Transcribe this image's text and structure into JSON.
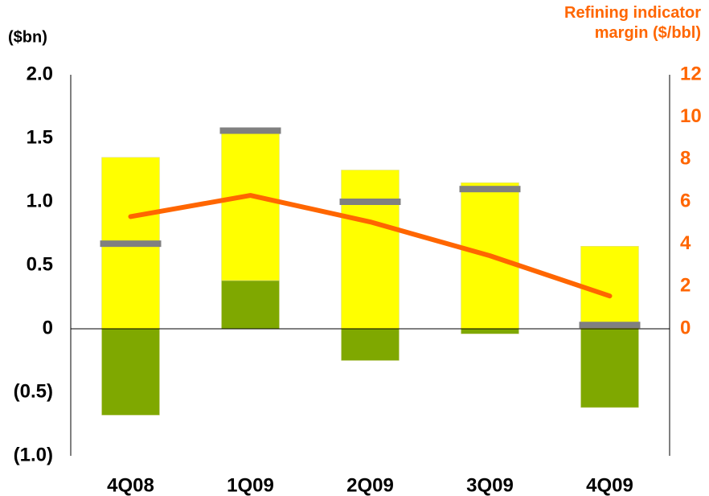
{
  "chart_data": {
    "type": "bar",
    "ylabel": "($bn)",
    "y2label": "Refining indicator margin ($/bbl)",
    "categories": [
      "4Q08",
      "1Q09",
      "2Q09",
      "3Q09",
      "4Q09"
    ],
    "series": [
      {
        "type": "bar",
        "color": "#7fa800",
        "values": [
          -0.68,
          0.38,
          -0.25,
          -0.04,
          -0.62
        ]
      },
      {
        "type": "bar",
        "color": "#ffff00",
        "values": [
          1.35,
          1.18,
          1.25,
          1.15,
          0.65
        ]
      },
      {
        "type": "marker",
        "color": "#808080",
        "values": [
          0.67,
          1.56,
          1.0,
          1.1,
          0.03
        ]
      },
      {
        "type": "line",
        "axis": "y2",
        "color": "#ff6600",
        "values": [
          5.3,
          6.3,
          5.05,
          3.45,
          1.55
        ]
      }
    ],
    "ylim": [
      -1.0,
      2.0
    ],
    "yticks": [
      {
        "value": 2.0,
        "label": "2.0"
      },
      {
        "value": 1.5,
        "label": "1.5"
      },
      {
        "value": 1.0,
        "label": "1.0"
      },
      {
        "value": 0.5,
        "label": "0.5"
      },
      0,
      {
        "value": -0.5,
        "label": "(0.5)"
      },
      {
        "value": -1.0,
        "label": "(1.0)"
      }
    ],
    "y2lim": [
      -6,
      12
    ],
    "y2ticks": [
      12,
      10,
      8,
      6,
      4,
      2,
      0
    ],
    "y2color": "#ff6600"
  }
}
